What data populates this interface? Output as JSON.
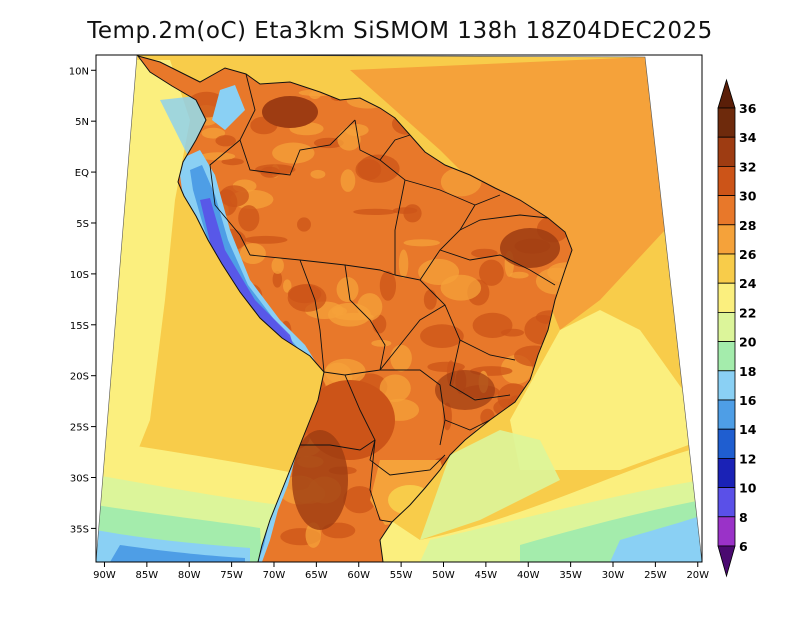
{
  "title": "Temp.2m(oC) Eta3km SiSMOM 138h 18Z04DEC2025",
  "x_axis": {
    "ticks": [
      {
        "id": "90w",
        "label": "90W",
        "lon": -90
      },
      {
        "id": "85w",
        "label": "85W",
        "lon": -85
      },
      {
        "id": "80w",
        "label": "80W",
        "lon": -80
      },
      {
        "id": "75w",
        "label": "75W",
        "lon": -75
      },
      {
        "id": "70w",
        "label": "70W",
        "lon": -70
      },
      {
        "id": "65w",
        "label": "65W",
        "lon": -65
      },
      {
        "id": "60w",
        "label": "60W",
        "lon": -60
      },
      {
        "id": "55w",
        "label": "55W",
        "lon": -55
      },
      {
        "id": "50w",
        "label": "50W",
        "lon": -50
      },
      {
        "id": "45w",
        "label": "45W",
        "lon": -45
      },
      {
        "id": "40w",
        "label": "40W",
        "lon": -40
      },
      {
        "id": "35w",
        "label": "35W",
        "lon": -35
      },
      {
        "id": "30w",
        "label": "30W",
        "lon": -30
      },
      {
        "id": "25w",
        "label": "25W",
        "lon": -25
      },
      {
        "id": "20w",
        "label": "20W",
        "lon": -20
      }
    ]
  },
  "y_axis": {
    "ticks": [
      {
        "id": "10n",
        "label": "10N",
        "lat": 10
      },
      {
        "id": "5n",
        "label": "5N",
        "lat": 5
      },
      {
        "id": "eq",
        "label": "EQ",
        "lat": 0
      },
      {
        "id": "5s",
        "label": "5S",
        "lat": -5
      },
      {
        "id": "10s",
        "label": "10S",
        "lat": -10
      },
      {
        "id": "15s",
        "label": "15S",
        "lat": -15
      },
      {
        "id": "20s",
        "label": "20S",
        "lat": -20
      },
      {
        "id": "25s",
        "label": "25S",
        "lat": -25
      },
      {
        "id": "30s",
        "label": "30S",
        "lat": -30
      },
      {
        "id": "35s",
        "label": "35S",
        "lat": -35
      }
    ]
  },
  "colorbar": {
    "unit": "oC",
    "levels": [
      {
        "label": "36",
        "color": "#6e2a0c"
      },
      {
        "label": "34",
        "color": "#9e3c12"
      },
      {
        "label": "32",
        "color": "#cc5418"
      },
      {
        "label": "30",
        "color": "#e8782a"
      },
      {
        "label": "28",
        "color": "#f5a23a"
      },
      {
        "label": "26",
        "color": "#f8cc4a"
      },
      {
        "label": "24",
        "color": "#fbef7e"
      },
      {
        "label": "22",
        "color": "#dcf59a"
      },
      {
        "label": "20",
        "color": "#a4ecac"
      },
      {
        "label": "18",
        "color": "#8ad0f4"
      },
      {
        "label": "16",
        "color": "#4e9ee6"
      },
      {
        "label": "14",
        "color": "#1f5ed0"
      },
      {
        "label": "12",
        "color": "#1a22b6"
      },
      {
        "label": "10",
        "color": "#5a50e8"
      },
      {
        "label": "8",
        "color": "#9a32c8"
      },
      {
        "label": "6",
        "color": "#6a1090"
      }
    ],
    "top_color": "#5a1e08",
    "bottom_color": "#4a0a70"
  },
  "colors": {
    "ocean_warm": "#f5a23a",
    "ocean_mid": "#f8cc4a",
    "ocean_cool": "#fbef7e",
    "ocean_cold": "#dcf59a",
    "ocean_colder": "#a4ecac",
    "ocean_coldest": "#8ad0f4",
    "land_base": "#e8782a",
    "land_hot": "#cc5418",
    "land_hottest": "#9e3c12",
    "andes_cool": "#8ad0f4",
    "andes_cold": "#4e9ee6",
    "andes_peak": "#5a50e8",
    "border": "#111111",
    "frame": "#000000"
  }
}
